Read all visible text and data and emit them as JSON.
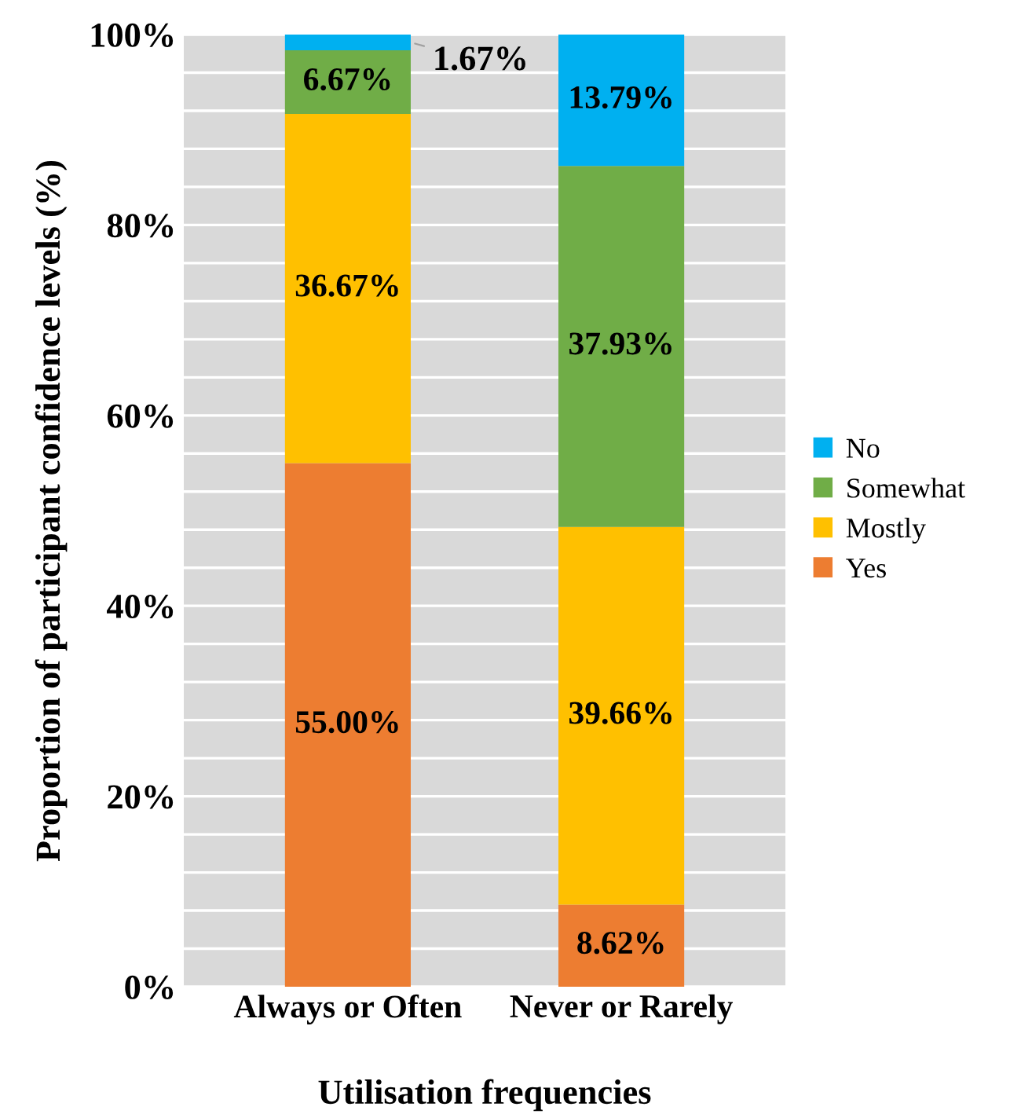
{
  "chart_data": {
    "type": "bar",
    "stacked": true,
    "xlabel": "Utilisation frequencies",
    "ylabel": "Proportion of participant confidence levels (%)",
    "categories": [
      "Always or Often",
      "Never or Rarely"
    ],
    "series": [
      {
        "name": "Yes",
        "color": "#ed7d31",
        "values": [
          55.0,
          8.62
        ],
        "value_labels": [
          "55.00%",
          "8.62%"
        ]
      },
      {
        "name": "Mostly",
        "color": "#ffc000",
        "values": [
          36.67,
          39.66
        ],
        "value_labels": [
          "36.67%",
          "39.66%"
        ]
      },
      {
        "name": "Somewhat",
        "color": "#70ad47",
        "values": [
          6.67,
          37.93
        ],
        "value_labels": [
          "6.67%",
          "37.93%"
        ]
      },
      {
        "name": "No",
        "color": "#00b0f0",
        "values": [
          1.67,
          13.79
        ],
        "value_labels": [
          "1.67%",
          "13.79%"
        ]
      }
    ],
    "ylim": [
      0,
      100
    ],
    "yticks": [
      {
        "value": 0,
        "label": "0%"
      },
      {
        "value": 4,
        "label": null
      },
      {
        "value": 8,
        "label": null
      },
      {
        "value": 12,
        "label": null
      },
      {
        "value": 16,
        "label": null
      },
      {
        "value": 20,
        "label": "20%"
      },
      {
        "value": 24,
        "label": null
      },
      {
        "value": 28,
        "label": null
      },
      {
        "value": 32,
        "label": null
      },
      {
        "value": 36,
        "label": null
      },
      {
        "value": 40,
        "label": "40%"
      },
      {
        "value": 44,
        "label": null
      },
      {
        "value": 48,
        "label": null
      },
      {
        "value": 52,
        "label": null
      },
      {
        "value": 56,
        "label": null
      },
      {
        "value": 60,
        "label": "60%"
      },
      {
        "value": 64,
        "label": null
      },
      {
        "value": 68,
        "label": null
      },
      {
        "value": 72,
        "label": null
      },
      {
        "value": 76,
        "label": null
      },
      {
        "value": 80,
        "label": "80%"
      },
      {
        "value": 84,
        "label": null
      },
      {
        "value": 88,
        "label": null
      },
      {
        "value": 92,
        "label": null
      },
      {
        "value": 96,
        "label": null
      },
      {
        "value": 100,
        "label": "100%"
      }
    ],
    "grid": "y",
    "legend": "right"
  }
}
